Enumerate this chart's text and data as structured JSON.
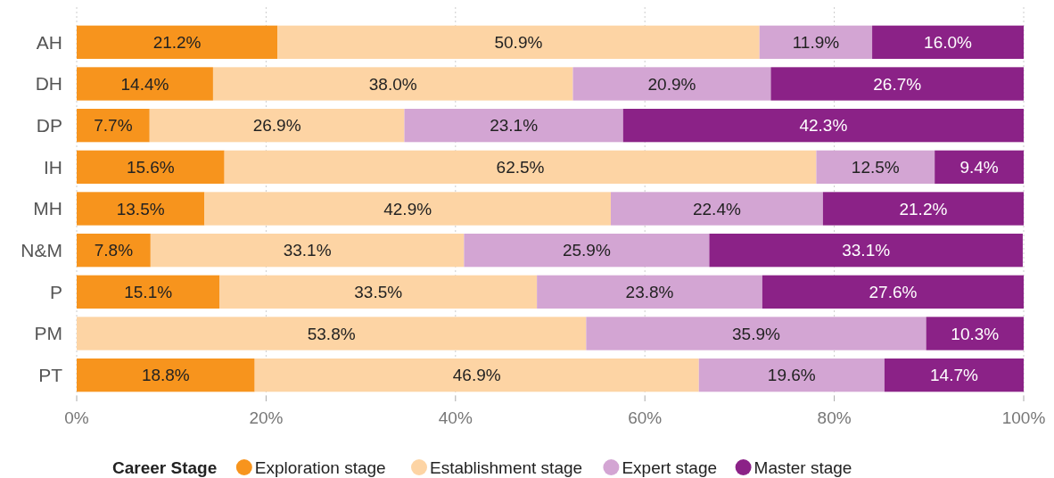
{
  "chart_data": {
    "type": "bar",
    "orientation": "horizontal",
    "stacked": true,
    "legend_title": "Career Stage",
    "legend": "bottom",
    "grid": "x",
    "categories": [
      "AH",
      "DH",
      "DP",
      "IH",
      "MH",
      "N&M",
      "P",
      "PM",
      "PT"
    ],
    "xlim": [
      0,
      100
    ],
    "xticks": [
      {
        "value": 0,
        "label": "0%"
      },
      {
        "value": 20,
        "label": "20%"
      },
      {
        "value": 40,
        "label": "40%"
      },
      {
        "value": 60,
        "label": "60%"
      },
      {
        "value": 80,
        "label": "80%"
      },
      {
        "value": 100,
        "label": "100%"
      }
    ],
    "series": [
      {
        "name": "Exploration stage",
        "color": "#f7941d",
        "values": [
          21.2,
          14.4,
          7.7,
          15.6,
          13.5,
          7.8,
          15.1,
          0,
          18.8
        ],
        "value_labels": [
          "21.2%",
          "14.4%",
          "7.7%",
          "15.6%",
          "13.5%",
          "7.8%",
          "15.1%",
          null,
          "18.8%"
        ]
      },
      {
        "name": "Establishment stage",
        "color": "#fdd4a4",
        "values": [
          50.9,
          38.0,
          26.9,
          62.5,
          42.9,
          33.1,
          33.5,
          53.8,
          46.9
        ],
        "value_labels": [
          "50.9%",
          "38.0%",
          "26.9%",
          "62.5%",
          "42.9%",
          "33.1%",
          "33.5%",
          "53.8%",
          "46.9%"
        ]
      },
      {
        "name": "Expert stage",
        "color": "#d3a5d3",
        "values": [
          11.9,
          20.9,
          23.1,
          12.5,
          22.4,
          25.9,
          23.8,
          35.9,
          19.6
        ],
        "value_labels": [
          "11.9%",
          "20.9%",
          "23.1%",
          "12.5%",
          "22.4%",
          "25.9%",
          "23.8%",
          "35.9%",
          "19.6%"
        ]
      },
      {
        "name": "Master stage",
        "color": "#8b2287",
        "values": [
          16.0,
          26.7,
          42.3,
          9.4,
          21.2,
          33.1,
          27.6,
          10.3,
          14.7
        ],
        "value_labels": [
          "16.0%",
          "26.7%",
          "42.3%",
          "9.4%",
          "21.2%",
          "33.1%",
          "27.6%",
          "10.3%",
          "14.7%"
        ]
      }
    ]
  }
}
